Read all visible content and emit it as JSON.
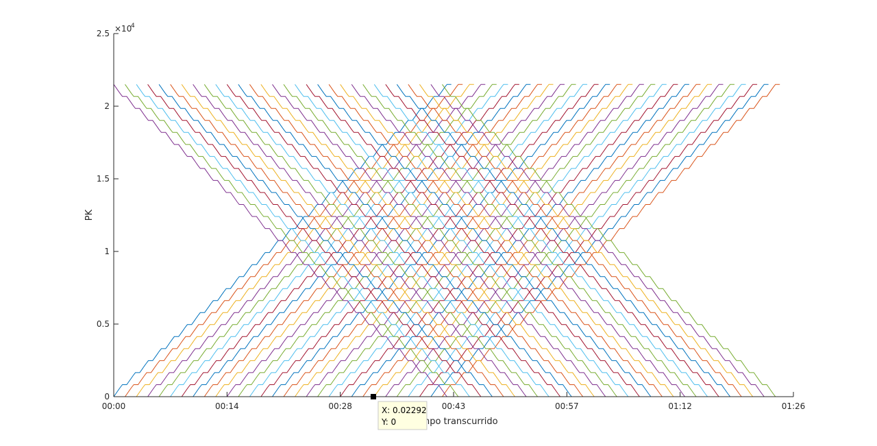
{
  "chart_data": {
    "type": "line",
    "title": "",
    "xlabel": "Tiempo transcurrido",
    "ylabel": "PK",
    "x_ticks": [
      "00:00",
      "00:14",
      "00:28",
      "00:43",
      "00:57",
      "01:12",
      "01:26"
    ],
    "xlim_days": [
      0,
      0.06
    ],
    "y_ticks": [
      "0",
      "0.5",
      "1",
      "1.5",
      "2",
      "2.5"
    ],
    "y_exponent_label": "×10",
    "y_exponent_power": "4",
    "ylim": [
      0,
      25000
    ],
    "grid": false,
    "legend": "none",
    "series_colors": [
      "#0072BD",
      "#D95319",
      "#EDB120",
      "#7E2F8E",
      "#77AC30",
      "#4DBEEE",
      "#A2142F"
    ],
    "up_series": {
      "count": 30,
      "first_start": 0.0,
      "spacing": 0.001,
      "duration": 0.0298,
      "y_from": 0,
      "y_to": 21500
    },
    "down_series": {
      "count": 30,
      "first_start": 0.0,
      "spacing": 0.001,
      "duration": 0.0298,
      "y_from": 21500,
      "y_to": 0
    },
    "datatip": {
      "x_label": "X: 0.02292",
      "y_label": "Y: 0",
      "x": 0.02292,
      "y": 0
    }
  }
}
